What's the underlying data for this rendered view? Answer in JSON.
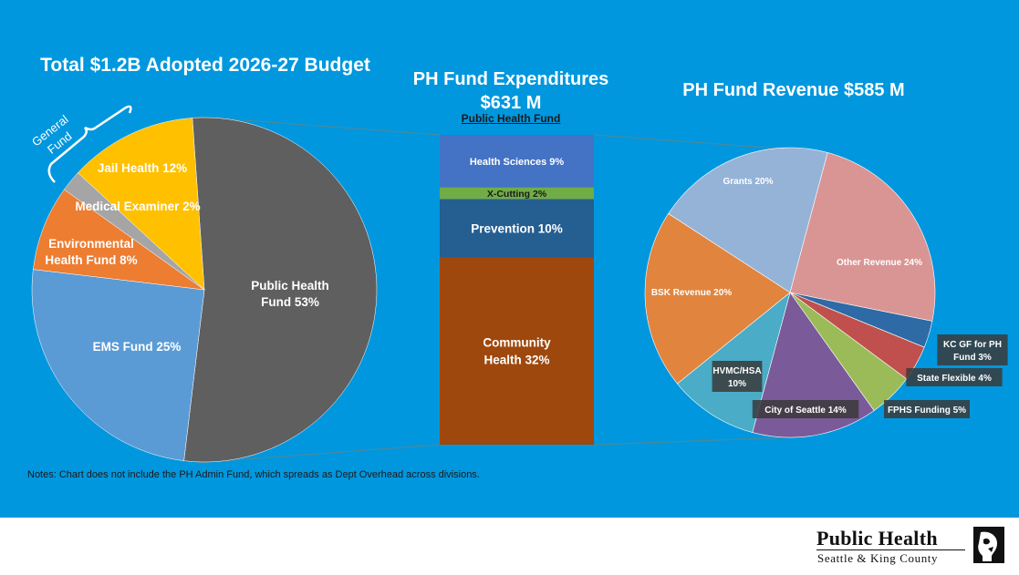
{
  "slide": {
    "title_left": "Total $1.2B Adopted 2026-27 Budget",
    "title_middle": "PH Fund Expenditures $631 M",
    "subtitle_middle": "Public Health Fund",
    "title_right": "PH Fund Revenue $585 M",
    "notes": "Notes:  Chart does not include the PH Admin Fund, which spreads as Dept Overhead across divisions.",
    "bracket_label": "General Fund"
  },
  "footer": {
    "org_name": "Public Health",
    "org_sub": "Seattle & King County"
  },
  "colors": {
    "background": "#0097de",
    "connector": "#4a8a9a"
  },
  "chart_data": [
    {
      "type": "pie",
      "title": "Total $1.2B Adopted 2026-27 Budget",
      "slices": [
        {
          "label": "Public Health Fund  53%",
          "value": 53,
          "color": "#5f5f5f"
        },
        {
          "label": "EMS Fund 25%",
          "value": 25,
          "color": "#5b9bd5"
        },
        {
          "label": "Environmental Health Fund 8%",
          "value": 8,
          "color": "#ed7d31"
        },
        {
          "label": "",
          "value": 2,
          "color": "#a5a5a5"
        },
        {
          "label": "Jail Health 12%",
          "value": 12,
          "color": "#ffc000"
        }
      ],
      "extra_labels": [
        "Medical Examiner 2%"
      ]
    },
    {
      "type": "bar",
      "stacked": true,
      "title": "PH Fund Expenditures $631 M",
      "subtitle": "Public Health Fund",
      "segments": [
        {
          "label": "Health Sciences 9%",
          "value": 9,
          "color": "#4472c4"
        },
        {
          "label": "X-Cutting 2%",
          "value": 2,
          "color": "#70ad47"
        },
        {
          "label": "Prevention 10%",
          "value": 10,
          "color": "#255e91"
        },
        {
          "label": "Community Health 32%",
          "value": 32,
          "color": "#9e480e"
        }
      ]
    },
    {
      "type": "pie",
      "title": "PH Fund Revenue $585 M",
      "slices": [
        {
          "label": "Other Revenue 24%",
          "value": 24,
          "color": "#d99594"
        },
        {
          "label": "KC GF for PH Fund 3%",
          "value": 3,
          "color": "#2e6aa6"
        },
        {
          "label": "State Flexible 4%",
          "value": 4,
          "color": "#c0504d"
        },
        {
          "label": "FPHS Funding 5%",
          "value": 5,
          "color": "#9bbb59"
        },
        {
          "label": "City of Seattle 14%",
          "value": 14,
          "color": "#7a5a99"
        },
        {
          "label": "HVMC/HSA 10%",
          "value": 10,
          "color": "#4aacc6"
        },
        {
          "label": "BSK Revenue 20%",
          "value": 20,
          "color": "#e0843e"
        },
        {
          "label": "Grants 20%",
          "value": 20,
          "color": "#95b3d7"
        }
      ]
    }
  ]
}
